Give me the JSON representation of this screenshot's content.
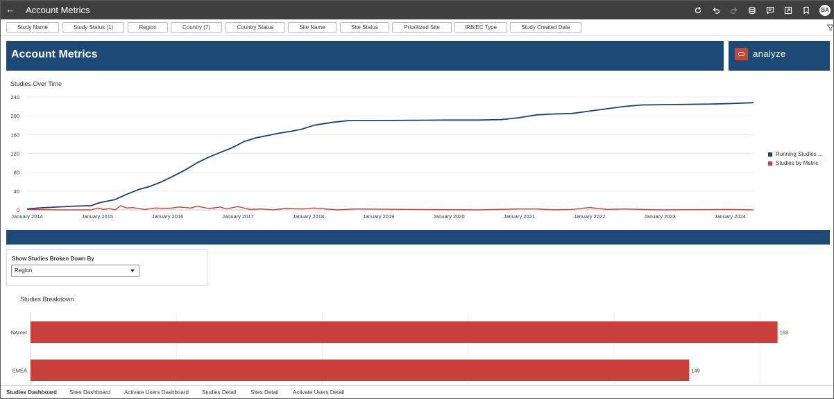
{
  "topbar": {
    "back_glyph": "←",
    "title": "Account Metrics",
    "tools": [
      {
        "name": "refresh-icon"
      },
      {
        "name": "undo-icon"
      },
      {
        "name": "redo-icon"
      },
      {
        "name": "data-icon"
      },
      {
        "name": "comment-icon"
      },
      {
        "name": "present-icon"
      },
      {
        "name": "bookmark-icon"
      }
    ],
    "avatar": "BA"
  },
  "filters": [
    {
      "label": "Study Name"
    },
    {
      "label": "Study Status (1)"
    },
    {
      "label": "Region"
    },
    {
      "label": "Country (7)"
    },
    {
      "label": "Country Status"
    },
    {
      "label": "Site Name"
    },
    {
      "label": "Site Status"
    },
    {
      "label": "Prioritized Site"
    },
    {
      "label": "IRB/EC Type"
    },
    {
      "label": "Study Created Date"
    }
  ],
  "header": {
    "title": "Account Metrics",
    "logo_text": "analyze"
  },
  "colors": {
    "navy": "#1d4977",
    "red": "#c9403a",
    "series_blue": "#1f3f66"
  },
  "chart_data": [
    {
      "type": "line",
      "title": "Studies Over Time",
      "x_ticks": [
        "January 2014",
        "January 2015",
        "January 2016",
        "January 2017",
        "January 2018",
        "January 2019",
        "January 2020",
        "January 2021",
        "January 2022",
        "January 2023",
        "January 2024"
      ],
      "y_ticks": [
        0,
        40,
        80,
        120,
        160,
        200,
        240
      ],
      "ylim": [
        0,
        240
      ],
      "xlim": [
        "2014-01",
        "2024-05"
      ],
      "grid": "horizontal",
      "legend": "right",
      "series": [
        {
          "name": "Running Studies ...",
          "color": "#1f3f66",
          "points": [
            [
              "2014-01",
              2
            ],
            [
              "2014-03",
              4
            ],
            [
              "2014-06",
              6
            ],
            [
              "2014-09",
              8
            ],
            [
              "2014-12",
              9
            ],
            [
              "2015-01",
              14
            ],
            [
              "2015-02",
              17
            ],
            [
              "2015-04",
              22
            ],
            [
              "2015-06",
              33
            ],
            [
              "2015-08",
              43
            ],
            [
              "2015-10",
              50
            ],
            [
              "2015-12",
              60
            ],
            [
              "2016-02",
              72
            ],
            [
              "2016-04",
              85
            ],
            [
              "2016-06",
              100
            ],
            [
              "2016-08",
              112
            ],
            [
              "2016-10",
              122
            ],
            [
              "2016-12",
              132
            ],
            [
              "2017-02",
              145
            ],
            [
              "2017-04",
              153
            ],
            [
              "2017-06",
              158
            ],
            [
              "2017-08",
              163
            ],
            [
              "2017-10",
              167
            ],
            [
              "2017-12",
              172
            ],
            [
              "2018-02",
              180
            ],
            [
              "2018-05",
              186
            ],
            [
              "2018-08",
              190
            ],
            [
              "2019-01",
              190
            ],
            [
              "2020-01",
              191
            ],
            [
              "2020-06",
              191
            ],
            [
              "2020-10",
              192
            ],
            [
              "2021-01",
              196
            ],
            [
              "2021-04",
              202
            ],
            [
              "2021-07",
              204
            ],
            [
              "2021-10",
              205
            ],
            [
              "2022-01",
              210
            ],
            [
              "2022-04",
              215
            ],
            [
              "2022-07",
              220
            ],
            [
              "2022-10",
              223
            ],
            [
              "2023-04",
              224
            ],
            [
              "2023-10",
              225
            ],
            [
              "2024-01",
              226
            ],
            [
              "2024-05",
              228
            ]
          ]
        },
        {
          "name": "Studies by Metric",
          "color": "#c9403a",
          "points": [
            [
              "2014-01",
              1
            ],
            [
              "2014-06",
              0
            ],
            [
              "2014-12",
              0
            ],
            [
              "2015-01",
              4
            ],
            [
              "2015-02",
              1
            ],
            [
              "2015-03",
              3
            ],
            [
              "2015-04",
              0
            ],
            [
              "2015-05",
              9
            ],
            [
              "2015-06",
              4
            ],
            [
              "2015-07",
              5
            ],
            [
              "2015-09",
              1
            ],
            [
              "2015-11",
              4
            ],
            [
              "2016-01",
              3
            ],
            [
              "2016-03",
              6
            ],
            [
              "2016-05",
              4
            ],
            [
              "2016-06",
              8
            ],
            [
              "2016-08",
              3
            ],
            [
              "2016-10",
              6
            ],
            [
              "2016-11",
              2
            ],
            [
              "2017-01",
              7
            ],
            [
              "2017-03",
              1
            ],
            [
              "2017-05",
              2
            ],
            [
              "2017-07",
              0
            ],
            [
              "2017-09",
              3
            ],
            [
              "2017-12",
              2
            ],
            [
              "2018-02",
              4
            ],
            [
              "2018-06",
              0
            ],
            [
              "2018-09",
              2
            ],
            [
              "2019-06",
              1
            ],
            [
              "2020-06",
              0
            ],
            [
              "2021-01",
              2
            ],
            [
              "2021-04",
              2
            ],
            [
              "2021-07",
              0
            ],
            [
              "2021-10",
              1
            ],
            [
              "2022-01",
              5
            ],
            [
              "2022-04",
              1
            ],
            [
              "2022-07",
              2
            ],
            [
              "2023-01",
              0
            ],
            [
              "2024-01",
              1
            ],
            [
              "2024-05",
              0
            ]
          ]
        }
      ]
    },
    {
      "type": "bar",
      "orientation": "horizontal",
      "title": "Studies Breakdown",
      "categories": [
        "NAmer",
        "EMEA"
      ],
      "values": [
        169,
        149
      ],
      "xlim": [
        0,
        170
      ],
      "color": "#c9403a",
      "grid": "vertical"
    }
  ],
  "selector": {
    "label": "Show Studies Broken Down By",
    "value": "Region"
  },
  "tabs": [
    {
      "label": "Studies Dashboard",
      "active": true
    },
    {
      "label": "Sites Dashboard",
      "active": false
    },
    {
      "label": "Activate Users Dashboard",
      "active": false
    },
    {
      "label": "Studies Detail",
      "active": false
    },
    {
      "label": "Sites Detail",
      "active": false
    },
    {
      "label": "Activate Users Detail",
      "active": false
    }
  ]
}
